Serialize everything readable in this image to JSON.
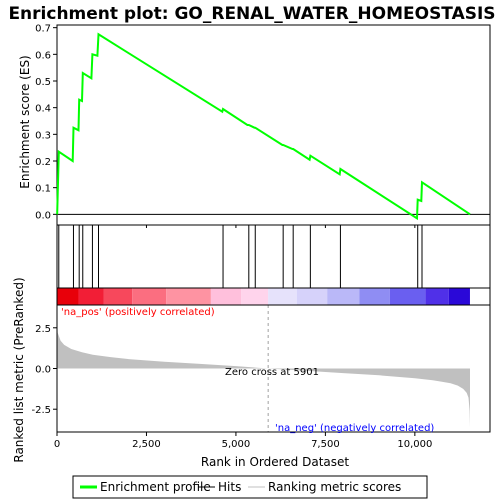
{
  "chart_data": {
    "type": "line",
    "title": "Enrichment plot: GO_RENAL_WATER_HOMEOSTASIS",
    "colors": {
      "enrichment_line": "#00ff00",
      "hits": "#000000",
      "metric_fill": "#c0c0c0",
      "pos_label": "#ff0000",
      "neg_label": "#0000ff",
      "zero_cross_line": "#a0a0a0"
    },
    "top_panel": {
      "ylabel": "Enrichment score (ES)",
      "ylim": [
        -0.04,
        0.71
      ],
      "yticks": [
        "0.0",
        "0.1",
        "0.2",
        "0.3",
        "0.4",
        "0.5",
        "0.6",
        "0.7"
      ],
      "ytick_values": [
        0.0,
        0.1,
        0.2,
        0.3,
        0.4,
        0.5,
        0.6,
        0.7
      ],
      "series": [
        {
          "name": "Enrichment profile",
          "x": [
            0,
            5,
            50,
            440,
            460,
            600,
            620,
            700,
            720,
            960,
            990,
            1130,
            1160,
            4620,
            4640,
            5320,
            5360,
            5520,
            5540,
            6300,
            6320,
            6580,
            6600,
            7060,
            7080,
            7900,
            7920,
            10060,
            10080,
            10180,
            10200,
            11540
          ],
          "y": [
            0.0,
            0.005,
            0.235,
            0.2,
            0.325,
            0.315,
            0.43,
            0.425,
            0.53,
            0.51,
            0.6,
            0.595,
            0.675,
            0.385,
            0.395,
            0.335,
            0.335,
            0.325,
            0.325,
            0.26,
            0.26,
            0.245,
            0.245,
            0.205,
            0.22,
            0.15,
            0.17,
            -0.015,
            0.055,
            0.05,
            0.12,
            0.0
          ]
        }
      ]
    },
    "hits_panel": {
      "hit_positions": [
        50,
        460,
        620,
        720,
        990,
        1160,
        4640,
        5360,
        5540,
        6320,
        6600,
        7080,
        7920,
        10080,
        10200
      ]
    },
    "bottom_panel": {
      "ylabel": "Ranked list metric (PreRanked)",
      "xlabel": "Rank in Ordered Dataset",
      "ylim": [
        -3.9,
        3.9
      ],
      "yticks": [
        "-2.5",
        "0.0",
        "2.5"
      ],
      "ytick_values": [
        -2.5,
        0.0,
        2.5
      ],
      "xlim": [
        0,
        12100
      ],
      "xticks": [
        "0",
        "2,500",
        "5,000",
        "7,500",
        "10,000"
      ],
      "xtick_values": [
        0,
        2500,
        5000,
        7500,
        10000
      ],
      "metric_curve": {
        "x": [
          0,
          20,
          100,
          200,
          400,
          700,
          1000,
          1500,
          2000,
          3000,
          4000,
          5000,
          5901,
          7000,
          8000,
          9000,
          10000,
          10500,
          11000,
          11200,
          11350,
          11450,
          11500,
          11530,
          11540
        ],
        "y": [
          3.0,
          2.2,
          1.7,
          1.45,
          1.2,
          1.0,
          0.85,
          0.7,
          0.58,
          0.42,
          0.28,
          0.15,
          0.0,
          -0.15,
          -0.28,
          -0.42,
          -0.6,
          -0.72,
          -0.9,
          -1.05,
          -1.25,
          -1.5,
          -1.8,
          -2.6,
          -3.6
        ]
      },
      "zero_cross": 5901,
      "zero_cross_text": "Zero cross at 5901",
      "pos_text": "'na_pos' (positively correlated)",
      "neg_text": "'na_neg' (negatively correlated)"
    },
    "color_bar": {
      "segments": [
        {
          "start": 0,
          "end": 600,
          "color": "#e8000a"
        },
        {
          "start": 600,
          "end": 1300,
          "color": "#f21e36"
        },
        {
          "start": 1300,
          "end": 2100,
          "color": "#f7485c"
        },
        {
          "start": 2100,
          "end": 3050,
          "color": "#fb6e80"
        },
        {
          "start": 3050,
          "end": 4300,
          "color": "#fe93a2"
        },
        {
          "start": 4300,
          "end": 5150,
          "color": "#ffc0dc"
        },
        {
          "start": 5150,
          "end": 5900,
          "color": "#ffd4ec"
        },
        {
          "start": 5900,
          "end": 6700,
          "color": "#e6e2fb"
        },
        {
          "start": 6700,
          "end": 7550,
          "color": "#d6d2fa"
        },
        {
          "start": 7550,
          "end": 8450,
          "color": "#bab8f8"
        },
        {
          "start": 8450,
          "end": 9300,
          "color": "#8f8df3"
        },
        {
          "start": 9300,
          "end": 10300,
          "color": "#6a5ff0"
        },
        {
          "start": 10300,
          "end": 10950,
          "color": "#5030e8"
        },
        {
          "start": 10950,
          "end": 11540,
          "color": "#2a08d8"
        }
      ]
    },
    "legend": [
      {
        "label": "Enrichment profile",
        "kind": "line",
        "color": "#00ff00"
      },
      {
        "label": "Hits",
        "kind": "line",
        "color": "#000000"
      },
      {
        "label": "Ranking metric scores",
        "kind": "line",
        "color": "#c0c0c0"
      }
    ]
  }
}
